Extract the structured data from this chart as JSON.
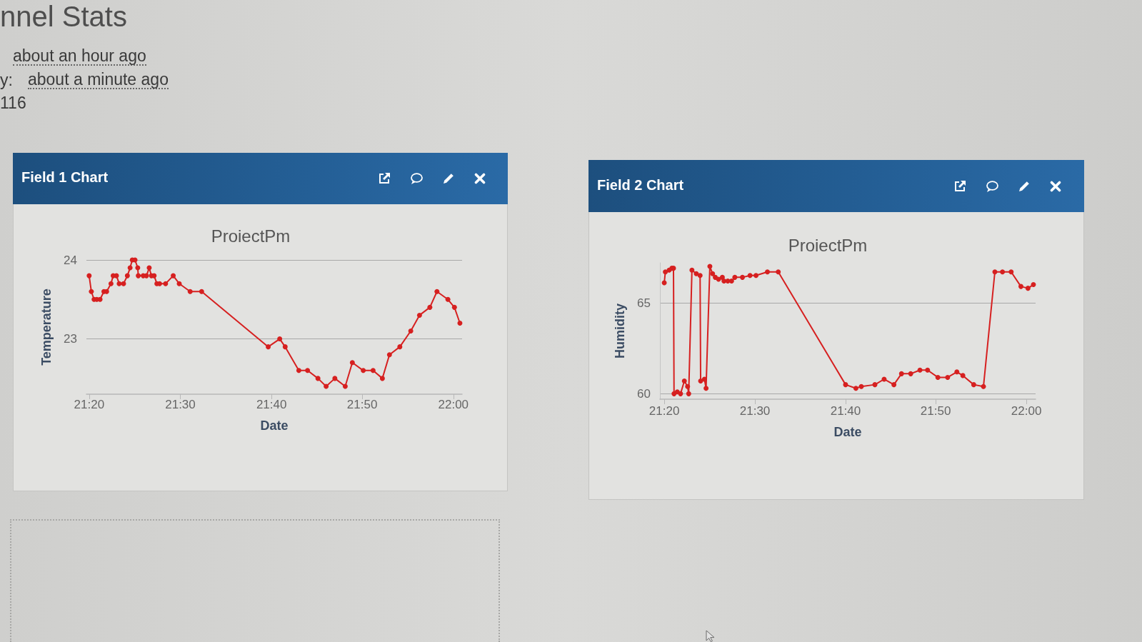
{
  "chart_data": [
    {
      "type": "other",
      "title": "nnel Stats",
      "annotations": [
        "about an hour ago",
        "y:",
        "about a minute ago",
        "116"
      ]
    },
    {
      "type": "line",
      "title": "Field 1 Chart",
      "subtitle": "ProiectPm",
      "xlabel": "Date",
      "ylabel": "Temperature",
      "x": [
        21.333,
        21.337,
        21.342,
        21.347,
        21.353,
        21.36,
        21.365,
        21.373,
        21.377,
        21.383,
        21.388,
        21.396,
        21.403,
        21.408,
        21.412,
        21.417,
        21.422,
        21.423,
        21.432,
        21.438,
        21.443,
        21.447,
        21.452,
        21.457,
        21.462,
        21.473,
        21.487,
        21.498,
        21.518,
        21.539,
        21.661,
        21.682,
        21.692,
        21.717,
        21.733,
        21.752,
        21.767,
        21.783,
        21.802,
        21.815,
        21.835,
        21.853,
        21.87,
        21.883,
        21.902,
        21.922,
        21.938,
        21.957,
        21.97,
        21.99,
        22.002,
        22.012
      ],
      "values": [
        23.8,
        23.6,
        23.5,
        23.5,
        23.5,
        23.6,
        23.6,
        23.7,
        23.8,
        23.8,
        23.7,
        23.7,
        23.8,
        23.9,
        24.0,
        24.0,
        23.9,
        23.8,
        23.8,
        23.8,
        23.9,
        23.8,
        23.8,
        23.7,
        23.7,
        23.7,
        23.8,
        23.7,
        23.6,
        23.6,
        22.9,
        23.0,
        22.9,
        22.6,
        22.6,
        22.5,
        22.4,
        22.5,
        22.4,
        22.7,
        22.6,
        22.6,
        22.5,
        22.8,
        22.9,
        23.1,
        23.3,
        23.4,
        23.6,
        23.5,
        23.4,
        23.2
      ],
      "color": "#d62020",
      "xlim": [
        21.328,
        22.016
      ],
      "xticks": [
        {
          "value": 21.333,
          "label": "21:20"
        },
        {
          "value": 21.5,
          "label": "21:30"
        },
        {
          "value": 21.667,
          "label": "21:40"
        },
        {
          "value": 21.833,
          "label": "21:50"
        },
        {
          "value": 22,
          "label": "22:00"
        }
      ],
      "ylim": [
        22.3,
        24
      ],
      "yticks": [
        23,
        24
      ],
      "grid": "y",
      "marker": "circle",
      "line_style": "solid"
    },
    {
      "type": "line",
      "title": "Field 2 Chart",
      "subtitle": "ProiectPm",
      "xlabel": "Date",
      "ylabel": "Humidity",
      "x": [
        21.333,
        21.335,
        21.342,
        21.347,
        21.35,
        21.351,
        21.357,
        21.363,
        21.37,
        21.376,
        21.378,
        21.384,
        21.392,
        21.399,
        21.4,
        21.407,
        21.41,
        21.417,
        21.422,
        21.427,
        21.433,
        21.44,
        21.443,
        21.45,
        21.457,
        21.463,
        21.477,
        21.491,
        21.502,
        21.523,
        21.543,
        21.667,
        21.686,
        21.696,
        21.721,
        21.738,
        21.756,
        21.77,
        21.787,
        21.804,
        21.818,
        21.837,
        21.855,
        21.872,
        21.883,
        21.903,
        21.921,
        21.942,
        21.956,
        21.972,
        21.99,
        22.003,
        22.013
      ],
      "values": [
        66.1,
        66.7,
        66.8,
        66.9,
        66.9,
        60.0,
        60.1,
        60.0,
        60.7,
        60.4,
        60.0,
        66.8,
        66.6,
        66.5,
        60.7,
        60.8,
        60.3,
        67.0,
        66.6,
        66.4,
        66.3,
        66.4,
        66.2,
        66.2,
        66.2,
        66.4,
        66.4,
        66.5,
        66.5,
        66.7,
        66.7,
        60.5,
        60.3,
        60.4,
        60.5,
        60.8,
        60.5,
        61.1,
        61.1,
        61.3,
        61.3,
        60.9,
        60.9,
        61.2,
        61.0,
        60.5,
        60.4,
        66.7,
        66.7,
        66.7,
        65.9,
        65.8,
        66.0
      ],
      "color": "#d62020",
      "xlim": [
        21.325,
        22.017
      ],
      "xticks": [
        {
          "value": 21.333,
          "label": "21:20"
        },
        {
          "value": 21.5,
          "label": "21:30"
        },
        {
          "value": 21.667,
          "label": "21:40"
        },
        {
          "value": 21.833,
          "label": "21:50"
        },
        {
          "value": 22,
          "label": "22:00"
        }
      ],
      "ylim": [
        59.7,
        67.2
      ],
      "yticks": [
        60,
        65
      ],
      "grid": "y",
      "marker": "circle",
      "line_style": "solid"
    }
  ]
}
